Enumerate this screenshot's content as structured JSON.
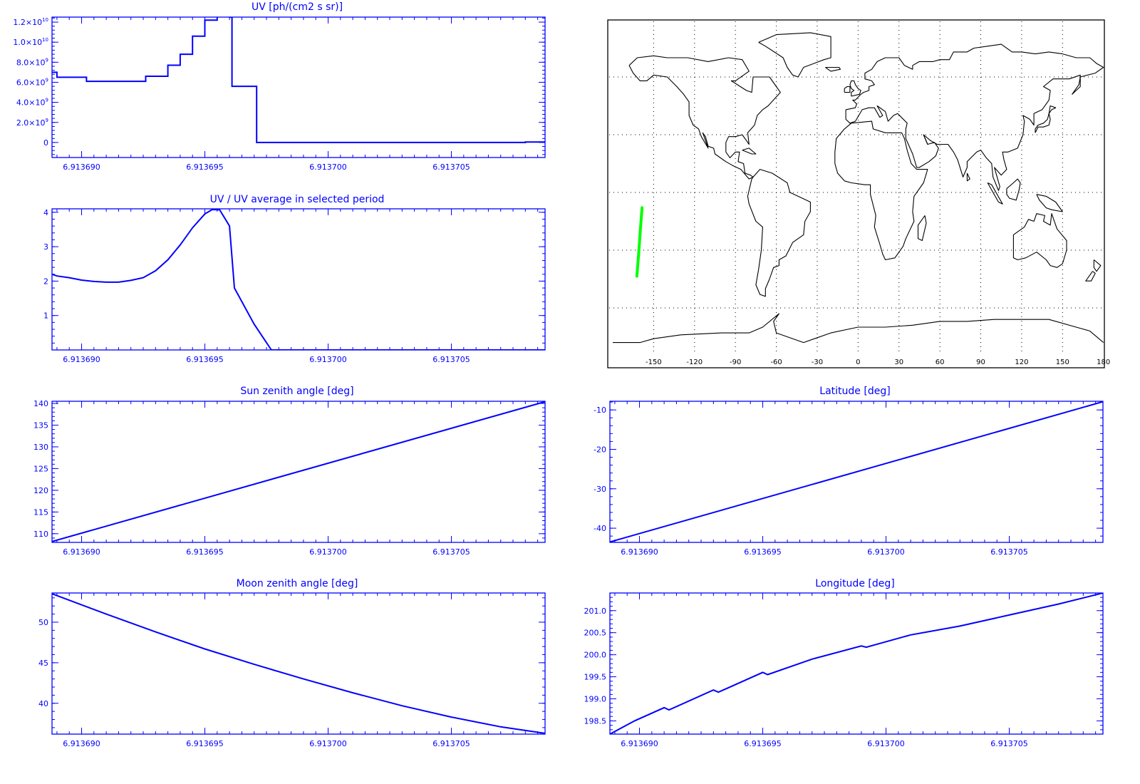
{
  "chart_data": [
    {
      "id": "uv",
      "type": "line",
      "title": "UV [ph/(cm2 s sr)]",
      "xlabel": "",
      "ylabel": "",
      "xlim": [
        6.9136888,
        6.9137088
      ],
      "ylim": [
        -1500000000.0,
        12500000000.0
      ],
      "xticks": [
        6.91369,
        6.913695,
        6.9137,
        6.913705
      ],
      "xtick_labels": [
        "6.913690",
        "6.913695",
        "6.913700",
        "6.913705"
      ],
      "yticks": [
        0,
        2000000000.0,
        4000000000.0,
        6000000000.0,
        8000000000.0,
        10000000000.0,
        12000000000.0
      ],
      "ytick_labels": [
        {
          "mant": "0",
          "exp": ""
        },
        {
          "mant": "2.0×10",
          "exp": "9"
        },
        {
          "mant": "4.0×10",
          "exp": "9"
        },
        {
          "mant": "6.0×10",
          "exp": "9"
        },
        {
          "mant": "8.0×10",
          "exp": "9"
        },
        {
          "mant": "1.0×10",
          "exp": "10"
        },
        {
          "mant": "1.2×10",
          "exp": "10"
        }
      ],
      "step": true,
      "clip_top": true,
      "series": [
        {
          "x": [
            6.9136888,
            6.913689,
            6.9136902,
            6.9136914,
            6.9136926,
            6.9136935,
            6.913694,
            6.9136945,
            6.913695,
            6.9136955,
            6.913696,
            6.9136961,
            6.913697,
            6.9136971,
            6.9137,
            6.913708,
            6.9137088
          ],
          "y": [
            7000000000.0,
            6500000000.0,
            6100000000.0,
            6100000000.0,
            6600000000.0,
            7700000000.0,
            8800000000.0,
            10600000000.0,
            12200000000.0,
            14000000000.0,
            12500000000.0,
            5600000000.0,
            5600000000.0,
            0.0,
            0.0,
            50000000.0,
            50000000.0
          ],
          "color": "#0000ff"
        }
      ]
    },
    {
      "id": "uv_ratio",
      "type": "line",
      "title": "UV / UV average in selected period",
      "xlabel": "",
      "ylabel": "",
      "xlim": [
        6.9136888,
        6.9137088
      ],
      "ylim": [
        0,
        4.1
      ],
      "xticks": [
        6.91369,
        6.913695,
        6.9137,
        6.913705
      ],
      "xtick_labels": [
        "6.913690",
        "6.913695",
        "6.913700",
        "6.913705"
      ],
      "yticks": [
        1,
        2,
        3,
        4
      ],
      "ytick_labels": [
        "1",
        "2",
        "3",
        "4"
      ],
      "series": [
        {
          "x": [
            6.9136888,
            6.913689,
            6.9136895,
            6.91369,
            6.9136905,
            6.913691,
            6.9136915,
            6.913692,
            6.9136925,
            6.913693,
            6.9136935,
            6.913694,
            6.9136945,
            6.913695,
            6.9136953,
            6.9136956,
            6.913696,
            6.9136962,
            6.913697,
            6.9136977,
            6.9137,
            6.9137088
          ],
          "y": [
            2.2,
            2.15,
            2.1,
            2.03,
            1.99,
            1.97,
            1.97,
            2.02,
            2.1,
            2.3,
            2.62,
            3.05,
            3.55,
            3.95,
            4.08,
            4.07,
            3.6,
            1.8,
            0.75,
            0.0,
            0.0,
            0.0
          ],
          "color": "#0000ff"
        }
      ]
    },
    {
      "id": "sun",
      "type": "line",
      "title": "Sun zenith angle [deg]",
      "xlabel": "",
      "ylabel": "",
      "xlim": [
        6.9136888,
        6.9137088
      ],
      "ylim": [
        108,
        140.5
      ],
      "xticks": [
        6.91369,
        6.913695,
        6.9137,
        6.913705
      ],
      "xtick_labels": [
        "6.913690",
        "6.913695",
        "6.913700",
        "6.913705"
      ],
      "yticks": [
        110,
        115,
        120,
        125,
        130,
        135,
        140
      ],
      "ytick_labels": [
        "110",
        "115",
        "120",
        "125",
        "130",
        "135",
        "140"
      ],
      "series": [
        {
          "x": [
            6.9136888,
            6.9137088
          ],
          "y": [
            108.2,
            140.4
          ],
          "color": "#0000ff"
        }
      ]
    },
    {
      "id": "moon",
      "type": "line",
      "title": "Moon zenith angle [deg]",
      "xlabel": "",
      "ylabel": "",
      "xlim": [
        6.9136888,
        6.9137088
      ],
      "ylim": [
        36.2,
        53.6
      ],
      "xticks": [
        6.91369,
        6.913695,
        6.9137,
        6.913705
      ],
      "xtick_labels": [
        "6.913690",
        "6.913695",
        "6.913700",
        "6.913705"
      ],
      "yticks": [
        40,
        45,
        50
      ],
      "ytick_labels": [
        "40",
        "45",
        "50"
      ],
      "series": [
        {
          "x": [
            6.9136888,
            6.913691,
            6.913693,
            6.913695,
            6.913697,
            6.913699,
            6.913701,
            6.913703,
            6.913705,
            6.913707,
            6.9137088
          ],
          "y": [
            53.5,
            51.0,
            48.8,
            46.7,
            44.8,
            43.0,
            41.3,
            39.7,
            38.3,
            37.1,
            36.3
          ],
          "color": "#0000ff"
        }
      ]
    },
    {
      "id": "lat",
      "type": "line",
      "title": "Latitude [deg]",
      "xlabel": "",
      "ylabel": "",
      "xlim": [
        6.9136888,
        6.9137088
      ],
      "ylim": [
        -43.6,
        -7.8
      ],
      "xticks": [
        6.91369,
        6.913695,
        6.9137,
        6.913705
      ],
      "xtick_labels": [
        "6.913690",
        "6.913695",
        "6.913700",
        "6.913705"
      ],
      "yticks": [
        -40,
        -30,
        -20,
        -10
      ],
      "ytick_labels": [
        "-40",
        "-30",
        "-20",
        "-10"
      ],
      "series": [
        {
          "x": [
            6.9136888,
            6.9137088
          ],
          "y": [
            -43.5,
            -7.9
          ],
          "color": "#0000ff"
        }
      ]
    },
    {
      "id": "lon",
      "type": "line",
      "title": "Longitude [deg]",
      "xlabel": "",
      "ylabel": "",
      "xlim": [
        6.9136888,
        6.9137088
      ],
      "ylim": [
        198.2,
        201.4
      ],
      "xticks": [
        6.91369,
        6.913695,
        6.9137,
        6.913705
      ],
      "xtick_labels": [
        "6.913690",
        "6.913695",
        "6.913700",
        "6.913705"
      ],
      "yticks": [
        198.5,
        199.0,
        199.5,
        200.0,
        200.5,
        201.0
      ],
      "ytick_labels": [
        "198.5",
        "199.0",
        "199.5",
        "200.0",
        "200.5",
        "201.0"
      ],
      "series": [
        {
          "x": [
            6.9136888,
            6.9136898,
            6.913691,
            6.9136912,
            6.913693,
            6.9136932,
            6.913695,
            6.9136952,
            6.913697,
            6.913699,
            6.9136992,
            6.913701,
            6.913703,
            6.913705,
            6.913707,
            6.9137088
          ],
          "y": [
            198.2,
            198.5,
            198.8,
            198.75,
            199.2,
            199.15,
            199.6,
            199.55,
            199.9,
            200.2,
            200.17,
            200.45,
            200.65,
            200.9,
            201.15,
            201.4
          ],
          "color": "#0000ff"
        }
      ]
    },
    {
      "id": "map",
      "type": "scatter",
      "title": "",
      "xlabel": "",
      "ylabel": "",
      "xlim": [
        -180,
        180
      ],
      "ylim": [
        -90,
        90
      ],
      "xticks": [
        -150,
        -120,
        -90,
        -60,
        -30,
        0,
        30,
        60,
        90,
        120,
        150,
        180
      ],
      "xtick_labels": [
        "-150",
        "-120",
        "-90",
        "-60",
        "-30",
        "0",
        "30",
        "60",
        "90",
        "120",
        "150",
        "180"
      ],
      "grid": true,
      "series": [
        {
          "name": "",
          "x": [
            -158.5,
            -159.8,
            -161.0,
            -162.3
          ],
          "y": [
            -7.9,
            -20.0,
            -32.0,
            -43.5
          ],
          "color": "#00ff00"
        }
      ]
    }
  ]
}
